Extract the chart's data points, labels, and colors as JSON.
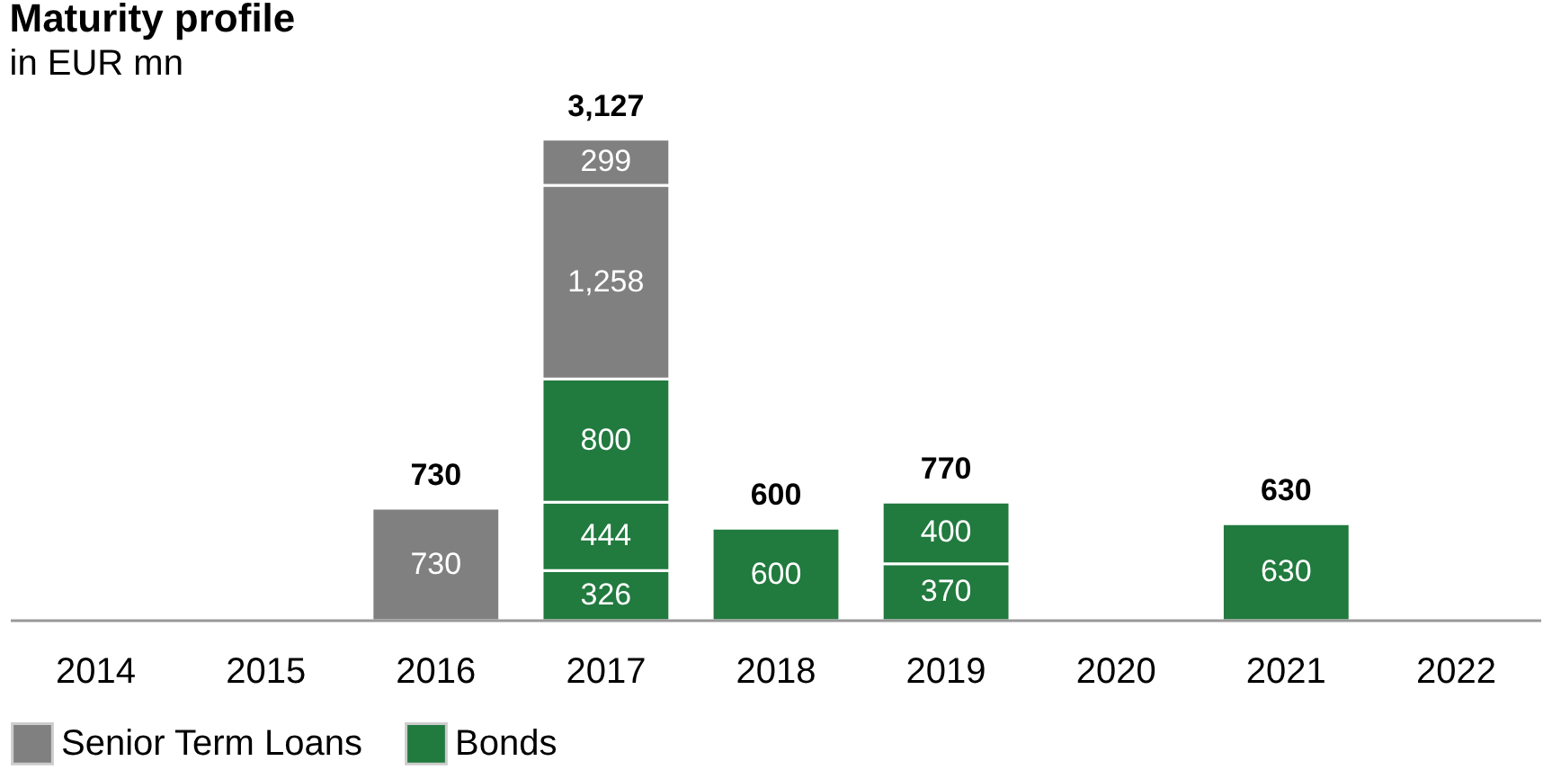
{
  "chart_data": {
    "type": "bar",
    "title": "Maturity profile",
    "subtitle": "in EUR mn",
    "categories": [
      "2014",
      "2015",
      "2016",
      "2017",
      "2018",
      "2019",
      "2020",
      "2021",
      "2022"
    ],
    "stacked": true,
    "data_labels": true,
    "legend": "bottom left",
    "grid": false,
    "series": [
      {
        "name": "Bonds",
        "color": "#217a3e",
        "values": [
          null,
          null,
          null,
          326,
          600,
          370,
          null,
          630,
          null
        ],
        "value_labels": [
          null,
          null,
          null,
          "326",
          "600",
          "370",
          null,
          "630",
          null
        ]
      },
      {
        "color": "#217a3e",
        "values": [
          null,
          null,
          null,
          444,
          null,
          400,
          null,
          null,
          null
        ],
        "value_labels": [
          null,
          null,
          null,
          "444",
          null,
          "400",
          null,
          null,
          null
        ]
      },
      {
        "color": "#217a3e",
        "values": [
          null,
          null,
          null,
          800,
          null,
          null,
          null,
          null,
          null
        ],
        "value_labels": [
          null,
          null,
          null,
          "800",
          null,
          null,
          null,
          null,
          null
        ]
      },
      {
        "name": "Senior Term Loans",
        "color": "#808080",
        "values": [
          null,
          null,
          730,
          1258,
          null,
          null,
          null,
          null,
          null
        ],
        "value_labels": [
          null,
          null,
          "730",
          "1,258",
          null,
          null,
          null,
          null,
          null
        ]
      },
      {
        "color": "#808080",
        "values": [
          null,
          null,
          null,
          299,
          null,
          null,
          null,
          null,
          null
        ],
        "value_labels": [
          null,
          null,
          null,
          "299",
          null,
          null,
          null,
          null,
          null
        ]
      }
    ],
    "totals": [
      null,
      null,
      "730",
      "3,127",
      "600",
      "770",
      null,
      "630",
      null
    ]
  }
}
